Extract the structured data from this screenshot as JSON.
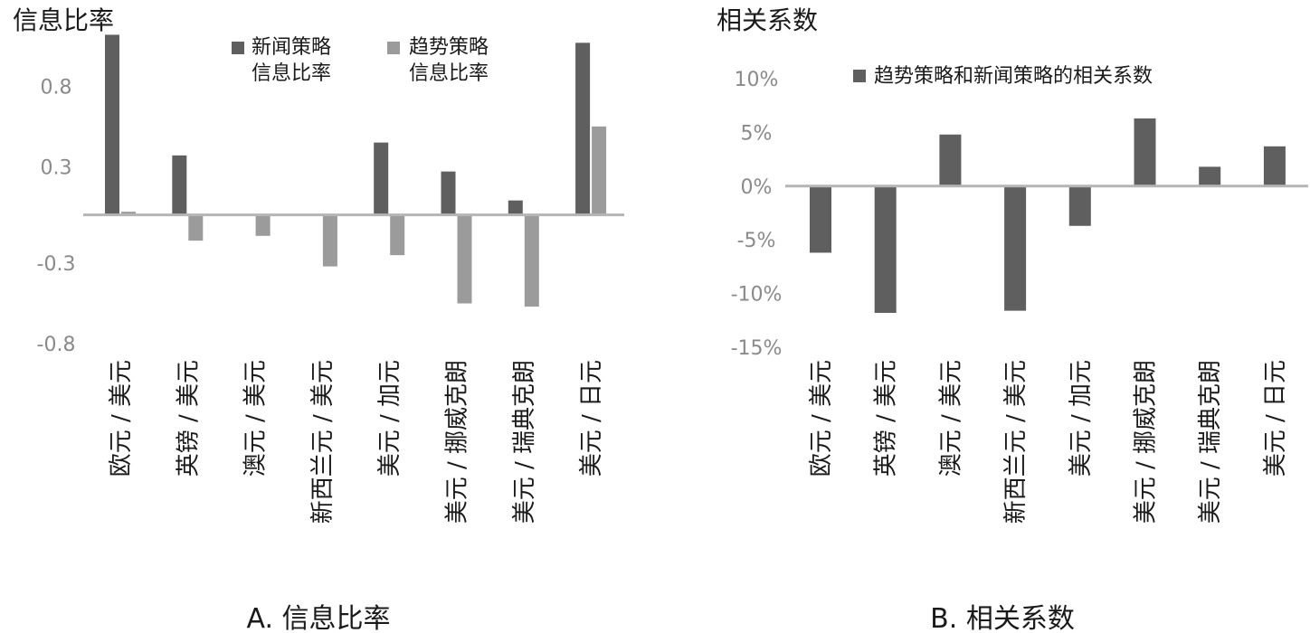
{
  "chart_data": [
    {
      "type": "bar",
      "title": "信息比率",
      "caption": "A. 信息比率",
      "categories": [
        "欧元 / 美元",
        "英镑 / 美元",
        "澳元 / 美元",
        "新西兰元 / 美元",
        "美元 / 加元",
        "美元 / 挪威克朗",
        "美元 / 瑞典克朗",
        "美元 / 日元"
      ],
      "series": [
        {
          "name_lines": [
            "新闻策略",
            "信息比率"
          ],
          "color": "#5f5f5f",
          "values": [
            1.12,
            0.37,
            0.0,
            0.0,
            0.45,
            0.27,
            0.09,
            1.07
          ]
        },
        {
          "name_lines": [
            "趋势策略",
            "信息比率"
          ],
          "color": "#9b9b9b",
          "values": [
            0.02,
            -0.16,
            -0.13,
            -0.32,
            -0.25,
            -0.55,
            -0.57,
            0.55
          ]
        }
      ],
      "yticks": [
        "0.8",
        "0.3",
        "-0.3",
        "-0.8"
      ],
      "ytick_values": [
        0.8,
        0.3,
        -0.3,
        -0.8
      ],
      "ylim": [
        -0.8,
        1.1
      ],
      "grid": false,
      "legend": "top"
    },
    {
      "type": "bar",
      "title": "相关系数",
      "caption": "B. 相关系数",
      "categories": [
        "欧元 / 美元",
        "英镑 / 美元",
        "澳元 / 美元",
        "新西兰元 / 美元",
        "美元 / 加元",
        "美元 / 挪威克朗",
        "美元 / 瑞典克朗",
        "美元 / 日元"
      ],
      "series": [
        {
          "name": "趋势策略和新闻策略的相关系数",
          "color": "#5f5f5f",
          "values": [
            -6.2,
            -11.8,
            4.8,
            -11.6,
            -3.7,
            6.3,
            1.8,
            3.7
          ]
        }
      ],
      "yticks": [
        "10%",
        "5%",
        "0%",
        "-5%",
        "-10%",
        "-15%"
      ],
      "ytick_values": [
        10,
        5,
        0,
        -5,
        -10,
        -15
      ],
      "ylim": [
        -15,
        10
      ],
      "grid": false,
      "legend": "top"
    }
  ]
}
